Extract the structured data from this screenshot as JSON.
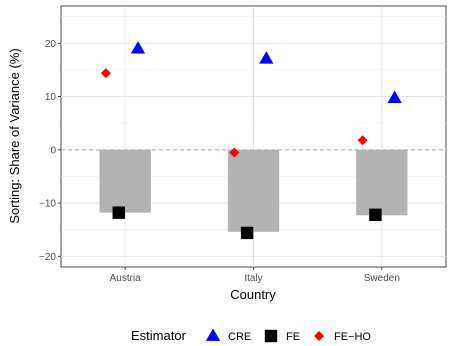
{
  "chart_data": {
    "type": "bar",
    "categories": [
      "Austria",
      "Italy",
      "Sweden"
    ],
    "xlabel": "Country",
    "ylabel": "Sorting: Share of Variance (%)",
    "ylim": [
      -22,
      27
    ],
    "yticks": [
      -20,
      -10,
      0,
      10,
      20
    ],
    "grid": true,
    "zero_line": "dashed",
    "bars": {
      "values": [
        -11.8,
        -15.4,
        -12.3
      ],
      "color": "#b3b3b3"
    },
    "series": [
      {
        "name": "CRE",
        "marker": "triangle",
        "color": "#0000ff",
        "values": [
          19.0,
          17.1,
          9.7
        ]
      },
      {
        "name": "FE",
        "marker": "square",
        "color": "#000000",
        "values": [
          -11.8,
          -15.6,
          -12.2
        ]
      },
      {
        "name": "FE−HO",
        "marker": "diamond",
        "color": "#ff0000",
        "values": [
          14.4,
          -0.5,
          1.8
        ]
      }
    ],
    "legend": {
      "title": "Estimator",
      "placement": "bottom"
    }
  }
}
